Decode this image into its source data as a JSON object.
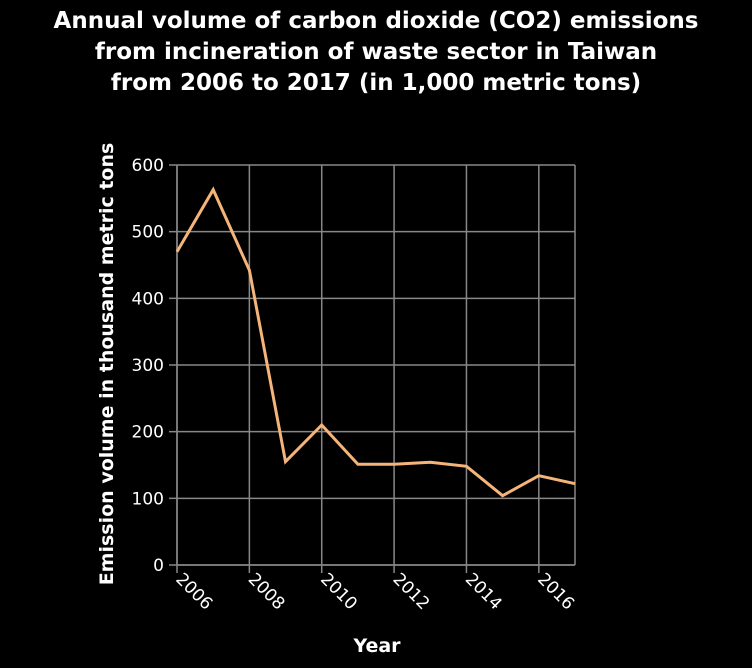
{
  "title_lines": [
    "Annual volume of carbon dioxide (CO2) emissions",
    "from incineration of waste sector in Taiwan",
    "from 2006 to 2017 (in 1,000 metric tons)"
  ],
  "colors": {
    "background": "#000000",
    "text": "#ffffff",
    "grid": "#888888",
    "line": "#f5b47a"
  },
  "chart_data": {
    "type": "line",
    "title": "Annual volume of carbon dioxide (CO2) emissions from incineration of waste sector in Taiwan from 2006 to 2017 (in 1,000 metric tons)",
    "xlabel": "Year",
    "ylabel": "Emission volume in thousand metric tons",
    "x": [
      2006,
      2007,
      2008,
      2009,
      2010,
      2011,
      2012,
      2013,
      2014,
      2015,
      2016,
      2017
    ],
    "series": [
      {
        "values": [
          470,
          563,
          442,
          155,
          210,
          151,
          151,
          154,
          148,
          104,
          134,
          122
        ]
      }
    ],
    "xlim": [
      2006,
      2017
    ],
    "ylim": [
      0,
      600
    ],
    "xticks": [
      "2006",
      "2008",
      "2010",
      "2012",
      "2014",
      "2016"
    ],
    "yticks": [
      "0",
      "100",
      "200",
      "300",
      "400",
      "500",
      "600"
    ],
    "grid": true
  }
}
